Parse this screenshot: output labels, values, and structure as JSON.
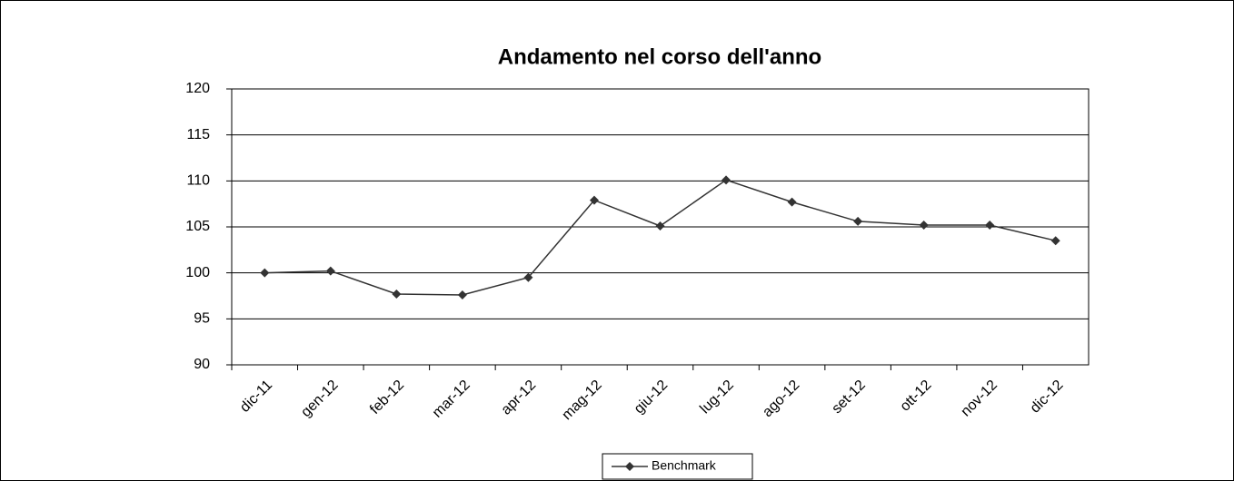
{
  "chart_data": {
    "type": "line",
    "title": "Andamento nel corso dell'anno",
    "categories": [
      "dic-11",
      "gen-12",
      "feb-12",
      "mar-12",
      "apr-12",
      "mag-12",
      "giu-12",
      "lug-12",
      "ago-12",
      "set-12",
      "ott-12",
      "nov-12",
      "dic-12"
    ],
    "series": [
      {
        "name": "Benchmark",
        "color": "#333333",
        "values": [
          100,
          100.2,
          97.7,
          97.6,
          99.5,
          107.9,
          105.1,
          110.1,
          107.7,
          105.6,
          105.2,
          105.2,
          103.5
        ]
      }
    ],
    "ylim": [
      90,
      120
    ],
    "yticks": [
      90,
      95,
      100,
      105,
      110,
      115,
      120
    ],
    "grid": true,
    "legend": "bottom"
  }
}
